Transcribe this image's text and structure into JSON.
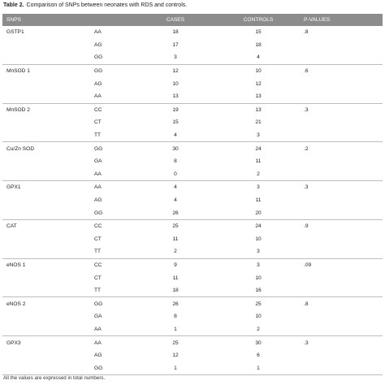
{
  "title": {
    "label": "Table 2.",
    "text": "Comparison of SNPs between neonates with RDS and controls."
  },
  "table": {
    "header": [
      "SNPS",
      "CASES",
      "CONTROLS",
      "P-VALUES"
    ],
    "groups": [
      {
        "snp": "GSTP1",
        "p_value": ".8",
        "rows": [
          [
            "AA",
            18,
            15
          ],
          [
            "AG",
            17,
            18
          ],
          [
            "GG",
            3,
            4
          ]
        ]
      },
      {
        "snp": "MnSOD 1",
        "p_value": ".6",
        "rows": [
          [
            "GG",
            12,
            10
          ],
          [
            "AG",
            10,
            12
          ],
          [
            "AA",
            13,
            13
          ]
        ]
      },
      {
        "snp": "MnSOD 2",
        "p_value": ".3",
        "rows": [
          [
            "CC",
            19,
            13
          ],
          [
            "CT",
            15,
            21
          ],
          [
            "TT",
            4,
            3
          ]
        ]
      },
      {
        "snp": "Cu/Zn SOD",
        "p_value": ".2",
        "rows": [
          [
            "GG",
            30,
            24
          ],
          [
            "GA",
            8,
            11
          ],
          [
            "AA",
            0,
            2
          ]
        ]
      },
      {
        "snp": "GPX1",
        "p_value": ".3",
        "rows": [
          [
            "AA",
            4,
            3
          ],
          [
            "AG",
            4,
            11
          ],
          [
            "GG",
            26,
            20
          ]
        ]
      },
      {
        "snp": "CAT",
        "p_value": ".9",
        "rows": [
          [
            "CC",
            25,
            24
          ],
          [
            "CT",
            11,
            10
          ],
          [
            "TT",
            2,
            3
          ]
        ]
      },
      {
        "snp": "eNOS 1",
        "p_value": ".09",
        "rows": [
          [
            "CC",
            9,
            3
          ],
          [
            "CT",
            11,
            10
          ],
          [
            "TT",
            18,
            16
          ]
        ]
      },
      {
        "snp": "eNOS 2",
        "p_value": ".8",
        "rows": [
          [
            "GG",
            26,
            25
          ],
          [
            "GA",
            8,
            10
          ],
          [
            "AA",
            1,
            2
          ]
        ]
      },
      {
        "snp": "GPX3",
        "p_value": ".3",
        "rows": [
          [
            "AA",
            25,
            30
          ],
          [
            "AG",
            12,
            6
          ],
          [
            "GG",
            1,
            1
          ]
        ]
      }
    ]
  },
  "footnote": "All the values are expressed in total numbers."
}
